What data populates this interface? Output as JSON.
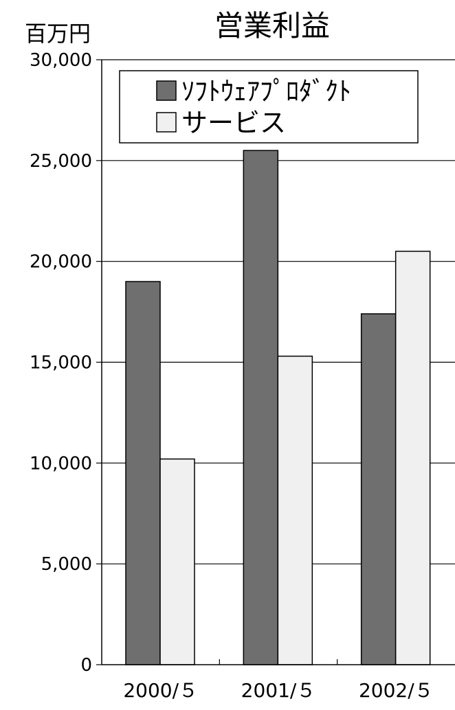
{
  "chart_data": {
    "type": "bar",
    "title": "営業利益",
    "ylabel": "百万円",
    "xlabel": "",
    "categories": [
      "2000/５",
      "2001/５",
      "2002/５"
    ],
    "series": [
      {
        "name": "ｿﾌﾄｳｪｱﾌﾟﾛﾀﾞｸﾄ",
        "color": "#6f6f6f",
        "values": [
          19000,
          25500,
          17400
        ]
      },
      {
        "name": "サービス",
        "color": "#f0f0f0",
        "values": [
          10200,
          15300,
          20500
        ]
      }
    ],
    "ylim": [
      0,
      30000
    ],
    "yticks": [
      0,
      5000,
      10000,
      15000,
      20000,
      25000,
      30000
    ],
    "ytick_labels": [
      "0",
      "5,000",
      "10,000",
      "15,000",
      "20,000",
      "25,000",
      "30,000"
    ],
    "grid": true,
    "legend_position": "top"
  }
}
